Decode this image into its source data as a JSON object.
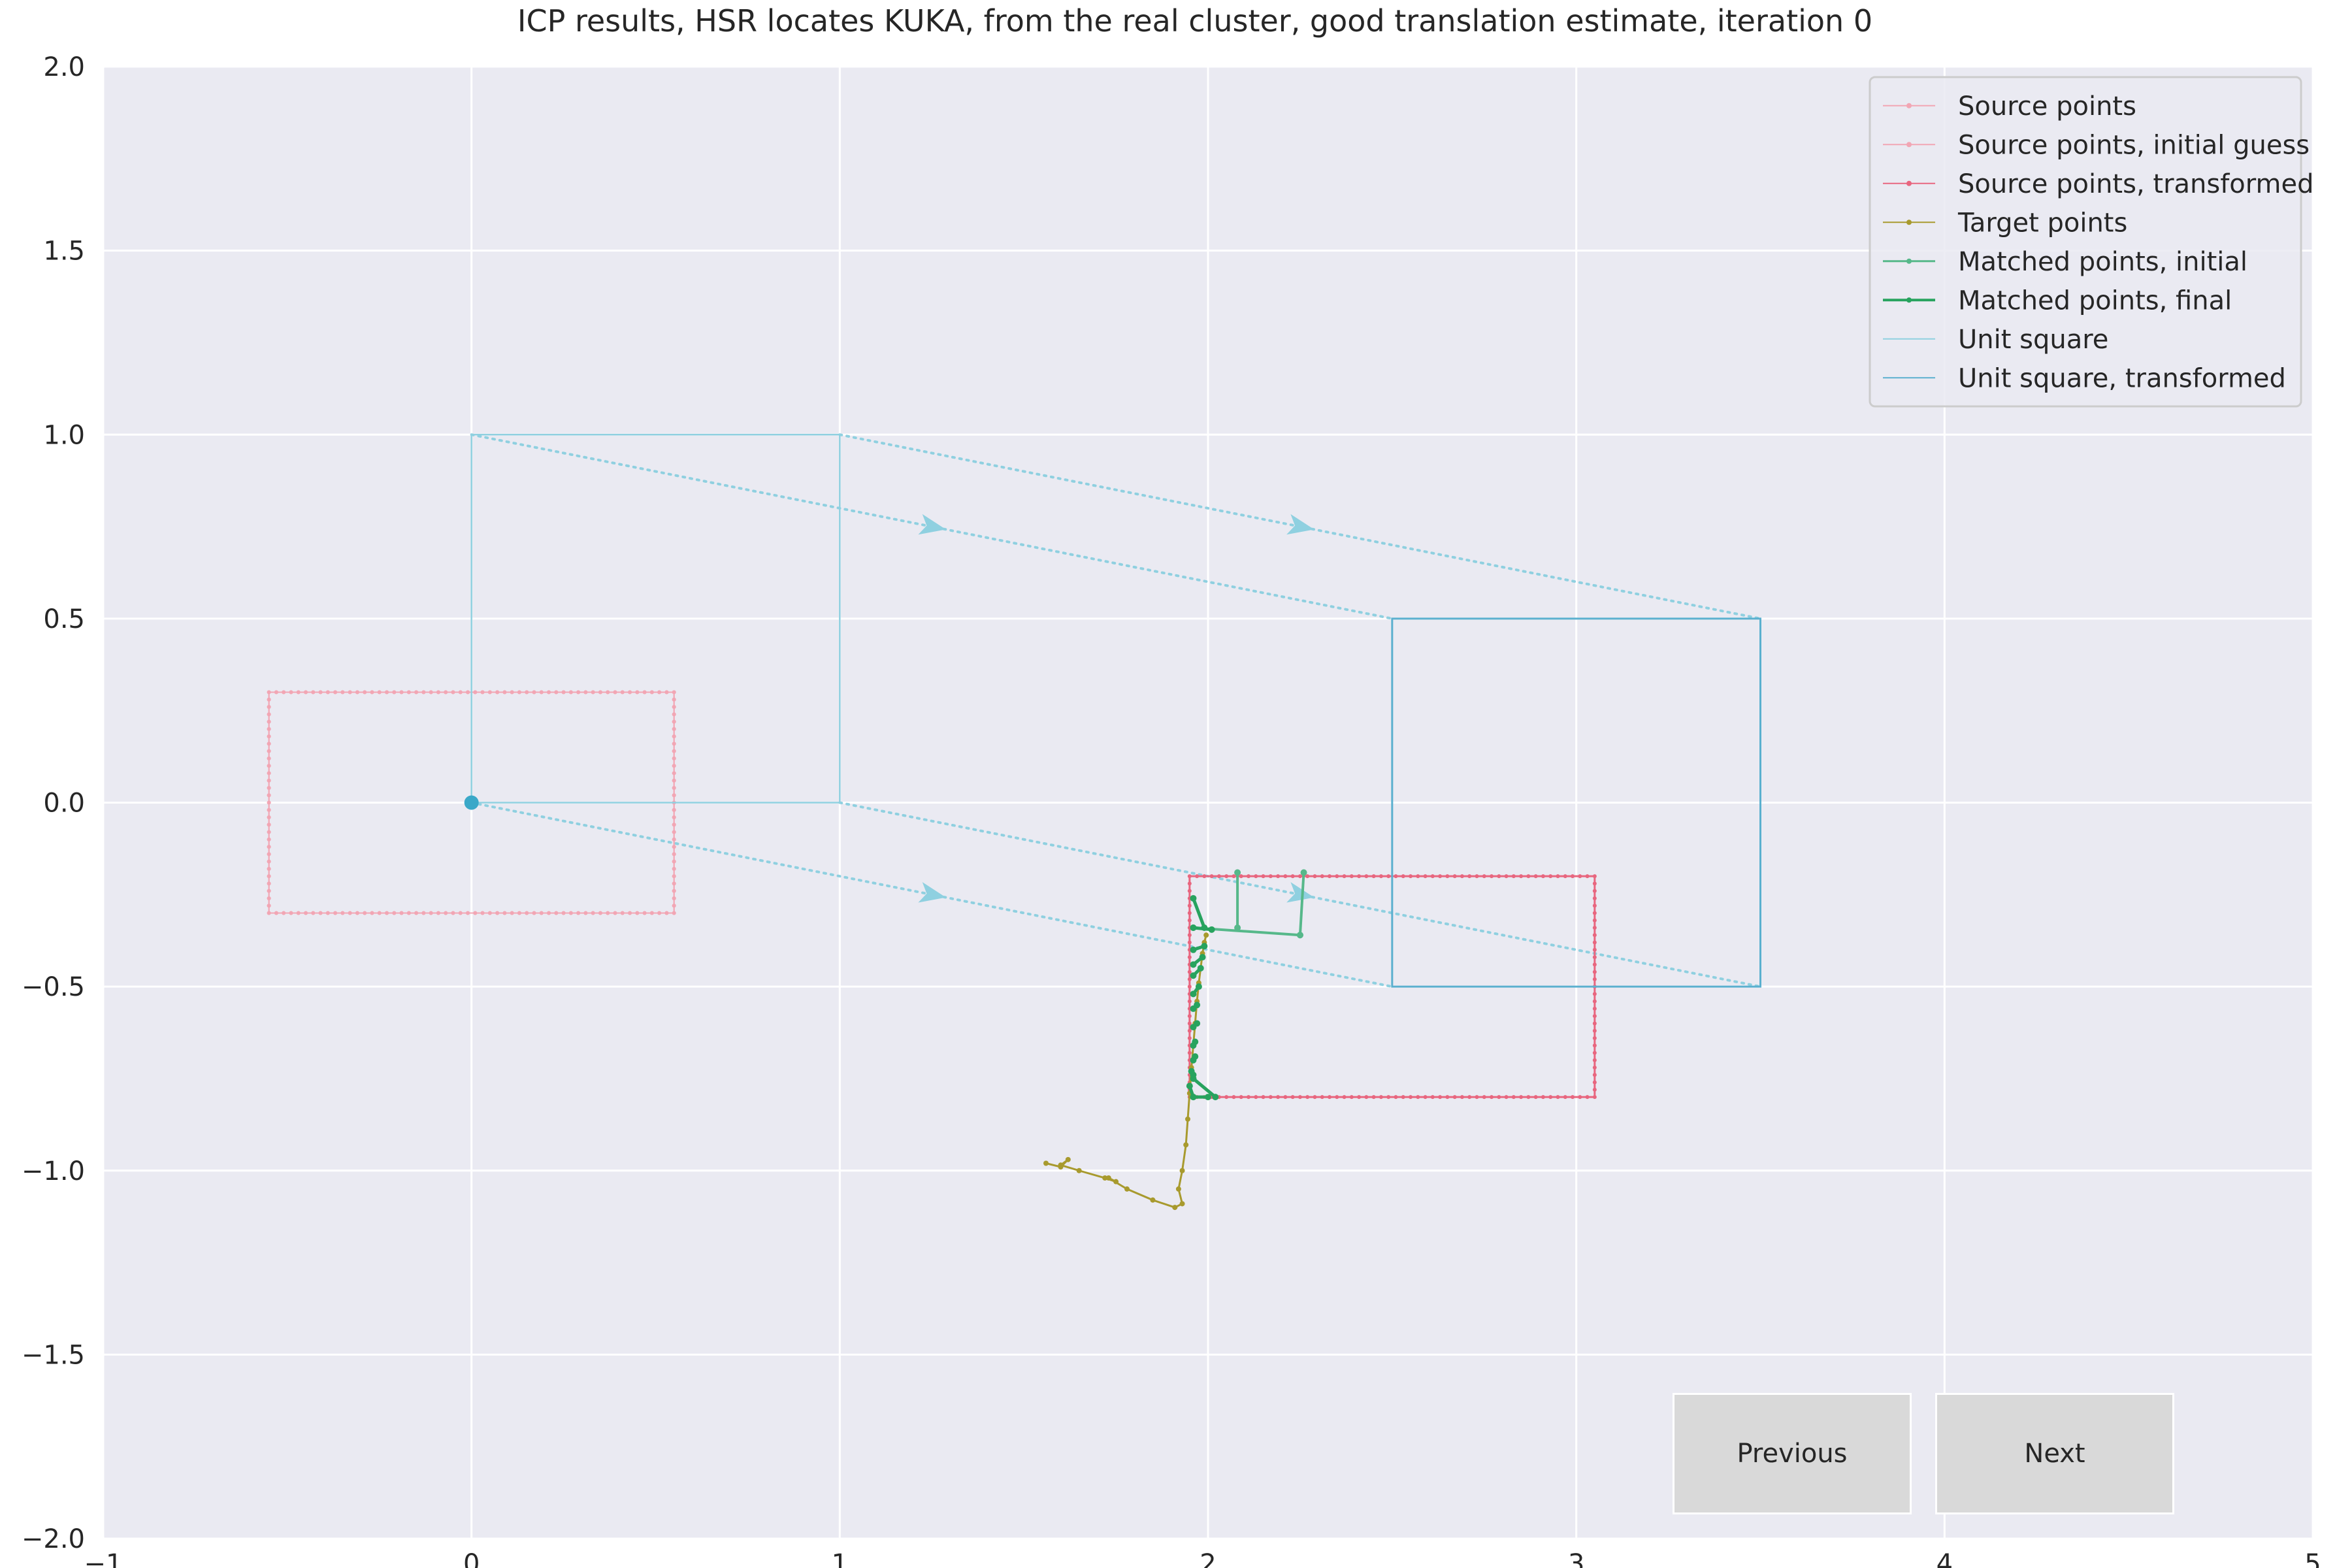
{
  "chart_data": {
    "type": "line",
    "title": "ICP results, HSR locates KUKA, from the real cluster, good translation estimate, iteration 0",
    "xlabel": "",
    "ylabel": "",
    "xlim": [
      -1,
      5
    ],
    "ylim": [
      -2,
      2
    ],
    "xticks": [
      -1,
      0,
      1,
      2,
      3,
      4,
      5
    ],
    "yticks": [
      -2.0,
      -1.5,
      -1.0,
      -0.5,
      0.0,
      0.5,
      1.0,
      1.5,
      2.0
    ],
    "xtick_labels": [
      "−1",
      "0",
      "1",
      "2",
      "3",
      "4",
      "5"
    ],
    "ytick_labels": [
      "−2.0",
      "−1.5",
      "−1.0",
      "−0.5",
      "0.0",
      "0.5",
      "1.0",
      "1.5",
      "2.0"
    ],
    "grid": true,
    "legend_position": "top-right",
    "colors": {
      "background": "#eaeaf2",
      "grid": "#ffffff",
      "source": "#f2a6b4",
      "source_initial": "#f2a6b4",
      "source_transformed": "#e8667f",
      "target": "#a89a2e",
      "matched_initial": "#56b88a",
      "matched_final": "#27a35e",
      "unit_square": "#8fd0e0",
      "unit_square_transformed": "#5bb0cf",
      "origin": "#3aa8c8"
    },
    "series": [
      {
        "name": "Source points",
        "style": "rect",
        "rect": {
          "x0": -0.55,
          "y0": -0.3,
          "x1": 0.55,
          "y1": 0.3
        }
      },
      {
        "name": "Source points, initial guess",
        "style": "rect",
        "rect": {
          "x0": -0.55,
          "y0": -0.3,
          "x1": 0.55,
          "y1": 0.3
        }
      },
      {
        "name": "Source points, transformed",
        "style": "rect",
        "rect": {
          "x0": 1.95,
          "y0": -0.8,
          "x1": 3.05,
          "y1": -0.2
        }
      },
      {
        "name": "Target points",
        "style": "polyline",
        "x": [
          1.56,
          1.6,
          1.62,
          1.6,
          1.65,
          1.72,
          1.75,
          1.73,
          1.78,
          1.85,
          1.91,
          1.93,
          1.92,
          1.93,
          1.94,
          1.945,
          1.95,
          1.955,
          1.96,
          1.965,
          1.97,
          1.975,
          1.98,
          1.985,
          1.99,
          1.995
        ],
        "y": [
          -0.98,
          -0.99,
          -0.97,
          -0.985,
          -1.0,
          -1.02,
          -1.03,
          -1.02,
          -1.05,
          -1.08,
          -1.1,
          -1.09,
          -1.05,
          -1.0,
          -0.93,
          -0.86,
          -0.79,
          -0.72,
          -0.66,
          -0.6,
          -0.54,
          -0.49,
          -0.45,
          -0.41,
          -0.38,
          -0.36
        ]
      },
      {
        "name": "Matched points, initial",
        "style": "segments",
        "segments": [
          [
            [
              1.96,
              -0.34
            ],
            [
              2.25,
              -0.36
            ]
          ],
          [
            [
              2.25,
              -0.36
            ],
            [
              2.26,
              -0.19
            ]
          ],
          [
            [
              2.08,
              -0.34
            ],
            [
              2.08,
              -0.19
            ]
          ]
        ]
      },
      {
        "name": "Matched points, final",
        "style": "segments",
        "segments": [
          [
            [
              1.96,
              -0.26
            ],
            [
              1.99,
              -0.34
            ]
          ],
          [
            [
              1.96,
              -0.34
            ],
            [
              2.01,
              -0.345
            ]
          ],
          [
            [
              1.96,
              -0.4
            ],
            [
              1.99,
              -0.39
            ]
          ],
          [
            [
              1.96,
              -0.44
            ],
            [
              1.985,
              -0.42
            ]
          ],
          [
            [
              1.96,
              -0.47
            ],
            [
              1.98,
              -0.45
            ]
          ],
          [
            [
              1.96,
              -0.52
            ],
            [
              1.975,
              -0.5
            ]
          ],
          [
            [
              1.96,
              -0.56
            ],
            [
              1.97,
              -0.55
            ]
          ],
          [
            [
              1.96,
              -0.61
            ],
            [
              1.97,
              -0.6
            ]
          ],
          [
            [
              1.96,
              -0.66
            ],
            [
              1.965,
              -0.65
            ]
          ],
          [
            [
              1.96,
              -0.7
            ],
            [
              1.965,
              -0.69
            ]
          ],
          [
            [
              1.96,
              -0.74
            ],
            [
              1.955,
              -0.73
            ]
          ],
          [
            [
              1.96,
              -0.8
            ],
            [
              1.95,
              -0.77
            ]
          ],
          [
            [
              1.96,
              -0.75
            ],
            [
              2.02,
              -0.8
            ]
          ],
          [
            [
              1.96,
              -0.8
            ],
            [
              2.0,
              -0.8
            ]
          ]
        ]
      },
      {
        "name": "Unit square",
        "style": "rect",
        "rect": {
          "x0": 0,
          "y0": 0,
          "x1": 1,
          "y1": 1
        }
      },
      {
        "name": "Unit square, transformed",
        "style": "rect",
        "rect": {
          "x0": 2.5,
          "y0": -0.5,
          "x1": 3.5,
          "y1": 0.5
        }
      }
    ],
    "transform_arrows": [
      {
        "from": [
          0,
          0
        ],
        "to": [
          2.5,
          -0.5
        ]
      },
      {
        "from": [
          1,
          0
        ],
        "to": [
          3.5,
          -0.5
        ]
      },
      {
        "from": [
          0,
          1
        ],
        "to": [
          2.5,
          0.5
        ]
      },
      {
        "from": [
          1,
          1
        ],
        "to": [
          3.5,
          0.5
        ]
      }
    ],
    "origin_point": [
      0,
      0
    ]
  },
  "controls": {
    "previous_label": "Previous",
    "next_label": "Next"
  }
}
